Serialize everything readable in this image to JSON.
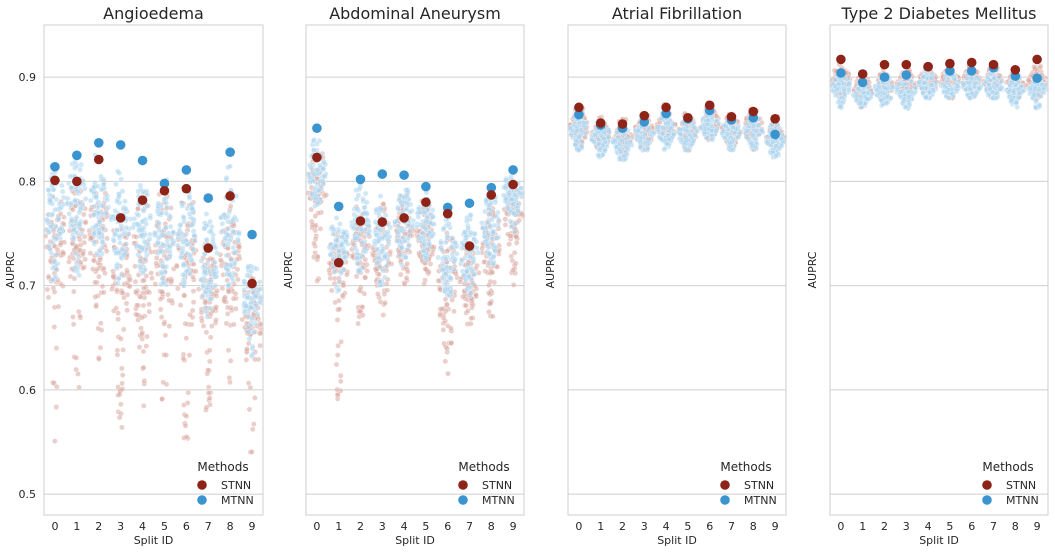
{
  "figure": {
    "background": "#ffffff"
  },
  "legend": {
    "title": "Methods",
    "entries": [
      {
        "label": "STNN",
        "color": "#8e2418"
      },
      {
        "label": "MTNN",
        "color": "#3a94d0"
      }
    ],
    "placement": "lower-right"
  },
  "colors": {
    "stnn_swarm": "#d9a8a1",
    "mtnn_swarm": "#a9d3ef",
    "grid": "#cfcfcf",
    "spine": "#cfcfcf"
  },
  "chart_data": [
    {
      "type": "scatter",
      "title": "Angioedema",
      "xlabel": "Split ID",
      "ylabel": "AUPRC",
      "categories": [
        "0",
        "1",
        "2",
        "3",
        "4",
        "5",
        "6",
        "7",
        "8",
        "9"
      ],
      "ylim": [
        0.48,
        0.95
      ],
      "yticks": [
        "0.5",
        "0.6",
        "0.7",
        "0.8",
        "0.9"
      ],
      "grid": true,
      "show_ytick_labels": true,
      "series": [
        {
          "name": "STNN",
          "values": [
            0.801,
            0.8,
            0.821,
            0.765,
            0.782,
            0.791,
            0.793,
            0.736,
            0.786,
            0.702
          ]
        },
        {
          "name": "MTNN",
          "values": [
            0.814,
            0.825,
            0.837,
            0.835,
            0.82,
            0.798,
            0.811,
            0.784,
            0.828,
            0.749
          ]
        }
      ],
      "swarm": {
        "stnn": {
          "center": [
            0.74,
            0.75,
            0.75,
            0.72,
            0.72,
            0.72,
            0.73,
            0.69,
            0.73,
            0.67
          ],
          "low": [
            0.55,
            0.6,
            0.61,
            0.56,
            0.58,
            0.57,
            0.55,
            0.58,
            0.6,
            0.54
          ],
          "high": [
            0.79,
            0.8,
            0.81,
            0.78,
            0.79,
            0.8,
            0.79,
            0.74,
            0.79,
            0.71
          ]
        },
        "mtnn": {
          "center": [
            0.77,
            0.78,
            0.78,
            0.76,
            0.76,
            0.75,
            0.75,
            0.72,
            0.76,
            0.69
          ],
          "low": [
            0.7,
            0.71,
            0.72,
            0.7,
            0.71,
            0.7,
            0.7,
            0.67,
            0.7,
            0.63
          ],
          "high": [
            0.82,
            0.82,
            0.83,
            0.81,
            0.8,
            0.81,
            0.8,
            0.77,
            0.82,
            0.72
          ]
        }
      }
    },
    {
      "type": "scatter",
      "title": "Abdominal Aneurysm",
      "xlabel": "Split ID",
      "ylabel": "AUPRC",
      "categories": [
        "0",
        "1",
        "2",
        "3",
        "4",
        "5",
        "6",
        "7",
        "8",
        "9"
      ],
      "ylim": [
        0.48,
        0.95
      ],
      "yticks": [
        "0.5",
        "0.6",
        "0.7",
        "0.8",
        "0.9"
      ],
      "grid": true,
      "show_ytick_labels": false,
      "series": [
        {
          "name": "STNN",
          "values": [
            0.823,
            0.722,
            0.762,
            0.761,
            0.765,
            0.78,
            0.769,
            0.738,
            0.787,
            0.797
          ]
        },
        {
          "name": "MTNN",
          "values": [
            0.851,
            0.776,
            0.802,
            0.807,
            0.806,
            0.795,
            0.775,
            0.779,
            0.794,
            0.811
          ]
        }
      ],
      "swarm": {
        "stnn": {
          "center": [
            0.79,
            0.72,
            0.74,
            0.73,
            0.75,
            0.75,
            0.7,
            0.71,
            0.74,
            0.77
          ],
          "low": [
            0.7,
            0.59,
            0.66,
            0.67,
            0.7,
            0.7,
            0.61,
            0.65,
            0.67,
            0.7
          ],
          "high": [
            0.83,
            0.75,
            0.78,
            0.78,
            0.79,
            0.79,
            0.76,
            0.75,
            0.78,
            0.8
          ]
        },
        "mtnn": {
          "center": [
            0.81,
            0.74,
            0.76,
            0.75,
            0.76,
            0.76,
            0.73,
            0.73,
            0.76,
            0.79
          ],
          "low": [
            0.77,
            0.69,
            0.71,
            0.7,
            0.72,
            0.72,
            0.69,
            0.69,
            0.72,
            0.75
          ],
          "high": [
            0.84,
            0.77,
            0.8,
            0.79,
            0.8,
            0.79,
            0.77,
            0.77,
            0.79,
            0.81
          ]
        }
      }
    },
    {
      "type": "scatter",
      "title": "Atrial Fibrillation",
      "xlabel": "Split ID",
      "ylabel": "AUPRC",
      "categories": [
        "0",
        "1",
        "2",
        "3",
        "4",
        "5",
        "6",
        "7",
        "8",
        "9"
      ],
      "ylim": [
        0.48,
        0.95
      ],
      "yticks": [
        "0.5",
        "0.6",
        "0.7",
        "0.8",
        "0.9"
      ],
      "grid": true,
      "show_ytick_labels": false,
      "series": [
        {
          "name": "STNN",
          "values": [
            0.871,
            0.856,
            0.855,
            0.863,
            0.871,
            0.861,
            0.873,
            0.862,
            0.867,
            0.86
          ]
        },
        {
          "name": "MTNN",
          "values": [
            0.864,
            0.854,
            0.851,
            0.857,
            0.865,
            0.86,
            0.868,
            0.859,
            0.861,
            0.845
          ]
        }
      ],
      "swarm": {
        "stnn": {
          "center": [
            0.853,
            0.845,
            0.842,
            0.848,
            0.852,
            0.848,
            0.856,
            0.85,
            0.852,
            0.843
          ],
          "low": [
            0.83,
            0.83,
            0.82,
            0.83,
            0.84,
            0.83,
            0.84,
            0.83,
            0.83,
            0.83
          ],
          "high": [
            0.875,
            0.862,
            0.86,
            0.867,
            0.874,
            0.866,
            0.876,
            0.866,
            0.87,
            0.864
          ]
        },
        "mtnn": {
          "center": [
            0.85,
            0.843,
            0.838,
            0.845,
            0.851,
            0.846,
            0.854,
            0.848,
            0.849,
            0.84
          ],
          "low": [
            0.83,
            0.82,
            0.82,
            0.83,
            0.83,
            0.83,
            0.84,
            0.83,
            0.83,
            0.82
          ],
          "high": [
            0.868,
            0.858,
            0.856,
            0.862,
            0.869,
            0.863,
            0.871,
            0.863,
            0.866,
            0.855
          ]
        }
      }
    },
    {
      "type": "scatter",
      "title": "Type 2 Diabetes Mellitus",
      "xlabel": "Split ID",
      "ylabel": "AUPRC",
      "categories": [
        "0",
        "1",
        "2",
        "3",
        "4",
        "5",
        "6",
        "7",
        "8",
        "9"
      ],
      "ylim": [
        0.48,
        0.95
      ],
      "yticks": [
        "0.5",
        "0.6",
        "0.7",
        "0.8",
        "0.9"
      ],
      "grid": true,
      "show_ytick_labels": false,
      "series": [
        {
          "name": "STNN",
          "values": [
            0.917,
            0.903,
            0.912,
            0.912,
            0.91,
            0.913,
            0.914,
            0.912,
            0.907,
            0.917
          ]
        },
        {
          "name": "MTNN",
          "values": [
            0.904,
            0.895,
            0.9,
            0.902,
            0.91,
            0.906,
            0.906,
            0.909,
            0.901,
            0.899
          ]
        }
      ],
      "swarm": {
        "stnn": {
          "center": [
            0.898,
            0.888,
            0.892,
            0.893,
            0.896,
            0.896,
            0.897,
            0.896,
            0.892,
            0.896
          ],
          "low": [
            0.88,
            0.87,
            0.88,
            0.88,
            0.88,
            0.88,
            0.88,
            0.88,
            0.88,
            0.88
          ],
          "high": [
            0.915,
            0.902,
            0.91,
            0.91,
            0.91,
            0.912,
            0.913,
            0.912,
            0.906,
            0.915
          ]
        },
        "mtnn": {
          "center": [
            0.892,
            0.884,
            0.888,
            0.888,
            0.893,
            0.892,
            0.893,
            0.892,
            0.888,
            0.889
          ],
          "low": [
            0.87,
            0.87,
            0.87,
            0.87,
            0.88,
            0.88,
            0.88,
            0.88,
            0.87,
            0.87
          ],
          "high": [
            0.905,
            0.897,
            0.902,
            0.903,
            0.909,
            0.907,
            0.907,
            0.909,
            0.902,
            0.9
          ]
        }
      }
    }
  ]
}
